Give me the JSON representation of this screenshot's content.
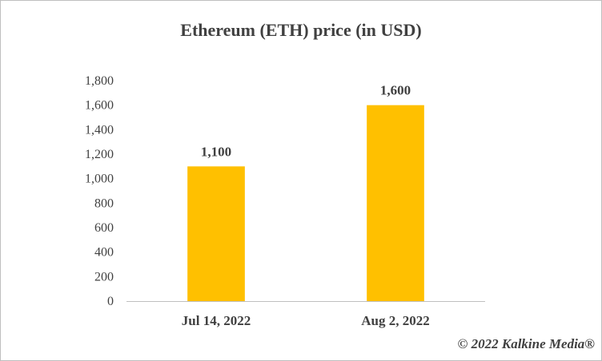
{
  "chart_data": {
    "type": "bar",
    "title": "Ethereum (ETH) price (in USD)",
    "categories": [
      "Jul 14, 2022",
      "Aug 2, 2022"
    ],
    "values": [
      1100,
      1600
    ],
    "data_labels": [
      "1,100",
      "1,600"
    ],
    "ylim": [
      0,
      1800
    ],
    "yticks": [
      "0",
      "200",
      "400",
      "600",
      "800",
      "1,000",
      "1,200",
      "1,400",
      "1,600",
      "1,800"
    ],
    "grid": false,
    "legend": "none",
    "bar_color": "#FFC000"
  },
  "footer": {
    "copyright": "© 2022 Kalkine Media®"
  }
}
